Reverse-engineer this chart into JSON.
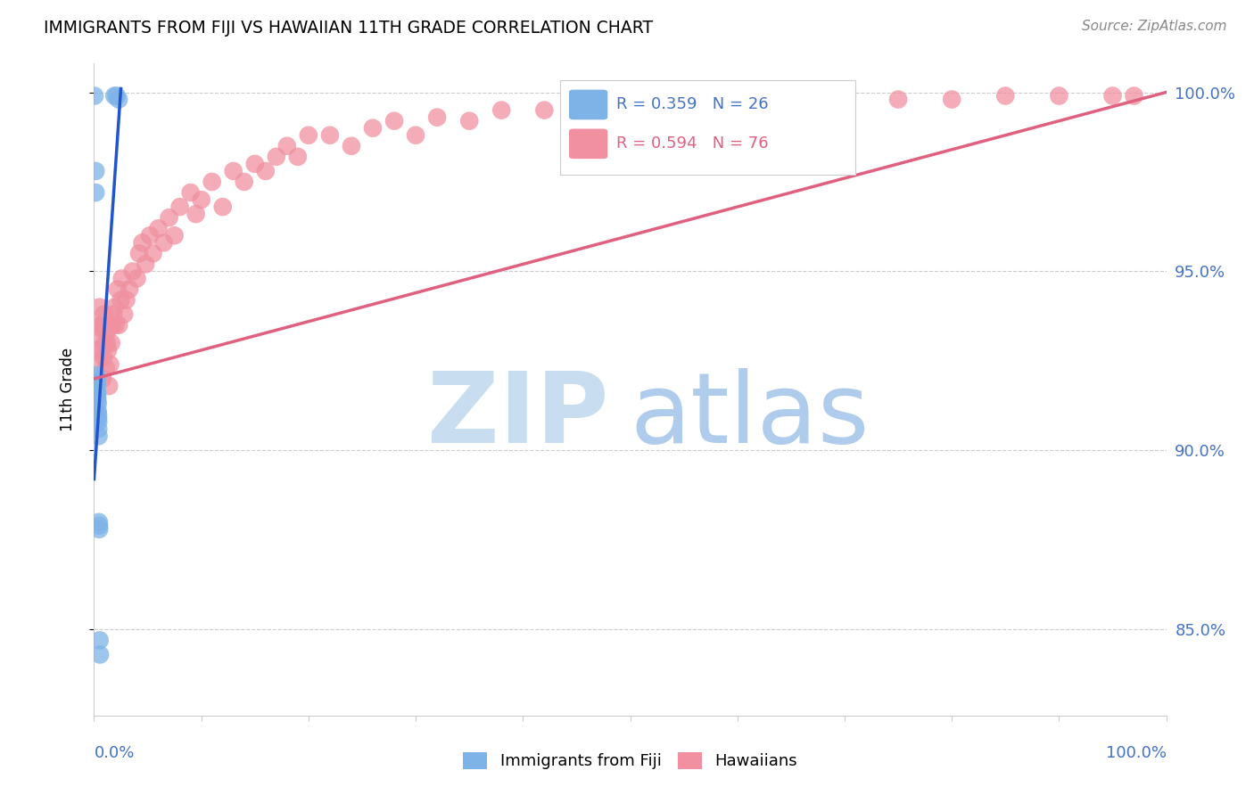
{
  "title": "IMMIGRANTS FROM FIJI VS HAWAIIAN 11TH GRADE CORRELATION CHART",
  "source": "Source: ZipAtlas.com",
  "ylabel": "11th Grade",
  "right_yticks": [
    "100.0%",
    "95.0%",
    "90.0%",
    "85.0%"
  ],
  "right_ytick_vals": [
    1.0,
    0.95,
    0.9,
    0.85
  ],
  "fiji_color": "#7eb3e8",
  "hawaiian_color": "#f090a0",
  "fiji_line_color": "#2255cc",
  "hawaiian_line_color": "#e06080",
  "watermark_zip_color": "#c8ddf0",
  "watermark_atlas_color": "#b0ccec",
  "right_axis_color": "#4472c4",
  "grid_color": "#cccccc",
  "background_color": "#ffffff",
  "xlim": [
    0.0,
    1.0
  ],
  "ylim": [
    0.826,
    1.008
  ],
  "fiji_scatter_x": [
    0.0005,
    0.0015,
    0.0015,
    0.002,
    0.0025,
    0.0025,
    0.0028,
    0.0028,
    0.003,
    0.003,
    0.0032,
    0.0035,
    0.0035,
    0.0038,
    0.0038,
    0.004,
    0.004,
    0.0042,
    0.0045,
    0.0048,
    0.0048,
    0.0052,
    0.0055,
    0.019,
    0.021,
    0.023
  ],
  "fiji_scatter_y": [
    0.999,
    0.978,
    0.972,
    0.921,
    0.92,
    0.919,
    0.918,
    0.916,
    0.916,
    0.915,
    0.914,
    0.913,
    0.911,
    0.91,
    0.909,
    0.908,
    0.906,
    0.904,
    0.88,
    0.879,
    0.878,
    0.847,
    0.843,
    0.999,
    0.999,
    0.998
  ],
  "hawaiian_scatter_x": [
    0.001,
    0.003,
    0.004,
    0.005,
    0.006,
    0.007,
    0.008,
    0.009,
    0.01,
    0.011,
    0.012,
    0.013,
    0.014,
    0.015,
    0.016,
    0.017,
    0.018,
    0.019,
    0.02,
    0.022,
    0.023,
    0.025,
    0.026,
    0.028,
    0.03,
    0.033,
    0.036,
    0.04,
    0.042,
    0.045,
    0.048,
    0.052,
    0.055,
    0.06,
    0.065,
    0.07,
    0.075,
    0.08,
    0.09,
    0.095,
    0.1,
    0.11,
    0.12,
    0.13,
    0.14,
    0.15,
    0.16,
    0.17,
    0.18,
    0.19,
    0.2,
    0.22,
    0.24,
    0.26,
    0.28,
    0.3,
    0.32,
    0.35,
    0.38,
    0.42,
    0.46,
    0.5,
    0.55,
    0.6,
    0.65,
    0.7,
    0.75,
    0.8,
    0.85,
    0.9,
    0.95,
    0.97,
    0.005,
    0.007,
    0.009,
    0.012
  ],
  "hawaiian_scatter_y": [
    0.928,
    0.925,
    0.935,
    0.932,
    0.928,
    0.934,
    0.92,
    0.926,
    0.93,
    0.923,
    0.933,
    0.928,
    0.918,
    0.924,
    0.93,
    0.935,
    0.938,
    0.94,
    0.935,
    0.945,
    0.935,
    0.942,
    0.948,
    0.938,
    0.942,
    0.945,
    0.95,
    0.948,
    0.955,
    0.958,
    0.952,
    0.96,
    0.955,
    0.962,
    0.958,
    0.965,
    0.96,
    0.968,
    0.972,
    0.966,
    0.97,
    0.975,
    0.968,
    0.978,
    0.975,
    0.98,
    0.978,
    0.982,
    0.985,
    0.982,
    0.988,
    0.988,
    0.985,
    0.99,
    0.992,
    0.988,
    0.993,
    0.992,
    0.995,
    0.995,
    0.998,
    0.996,
    0.998,
    0.999,
    0.999,
    0.999,
    0.998,
    0.998,
    0.999,
    0.999,
    0.999,
    0.999,
    0.94,
    0.935,
    0.938,
    0.93
  ],
  "fiji_line_x": [
    0.0,
    0.025
  ],
  "fiji_line_y_start": 0.892,
  "fiji_line_y_end": 1.001,
  "hawaiian_line_x": [
    0.0,
    1.0
  ],
  "hawaiian_line_y_start": 0.92,
  "hawaiian_line_y_end": 1.0
}
